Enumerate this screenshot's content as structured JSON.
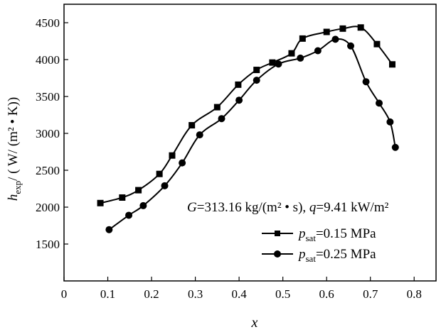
{
  "chart_data": {
    "type": "line",
    "title": "",
    "annotation": {
      "G_symbol": "G",
      "G_value": "=313.16 kg/(m² • s), ",
      "q_symbol": "q",
      "q_value": "=9.41 kW/m²"
    },
    "xlabel": "x",
    "ylabel": {
      "h": "h",
      "sub": "exp",
      "rest": "/ ( W/ (m² • K))"
    },
    "xlim": [
      0,
      0.85
    ],
    "ylim": [
      1000,
      4750
    ],
    "x_ticks": [
      0,
      0.1,
      0.2,
      0.3,
      0.4,
      0.5,
      0.6,
      0.7,
      0.8
    ],
    "x_tick_labels": [
      "0",
      "0.1",
      "0.2",
      "0.3",
      "0.4",
      "0.5",
      "0.6",
      "0.7",
      "0.8"
    ],
    "y_ticks": [
      1500,
      2000,
      2500,
      3000,
      3500,
      4000,
      4500
    ],
    "y_tick_labels": [
      "1500",
      "2000",
      "2500",
      "3000",
      "3500",
      "4000",
      "4500"
    ],
    "grid": false,
    "legend_position": "bottom-right",
    "series": [
      {
        "name": "p_sat=0.15 MPa",
        "legend_p": "p",
        "legend_sub": "sat",
        "legend_value": "=0.15 MPa",
        "marker": "square",
        "x": [
          0.083,
          0.133,
          0.17,
          0.218,
          0.247,
          0.292,
          0.35,
          0.398,
          0.44,
          0.476,
          0.52,
          0.545,
          0.6,
          0.637,
          0.678,
          0.715,
          0.75
        ],
        "y": [
          2055,
          2130,
          2230,
          2450,
          2700,
          3110,
          3355,
          3660,
          3860,
          3960,
          4085,
          4285,
          4375,
          4420,
          4435,
          4210,
          3935
        ]
      },
      {
        "name": "p_sat=0.25 MPa",
        "legend_p": "p",
        "legend_sub": "sat",
        "legend_value": "=0.25 MPa",
        "marker": "circle",
        "x": [
          0.103,
          0.148,
          0.181,
          0.23,
          0.27,
          0.31,
          0.36,
          0.4,
          0.44,
          0.49,
          0.54,
          0.58,
          0.62,
          0.655,
          0.69,
          0.72,
          0.745,
          0.757
        ],
        "y": [
          1695,
          1890,
          2020,
          2290,
          2600,
          2980,
          3200,
          3450,
          3720,
          3940,
          4020,
          4120,
          4275,
          4185,
          3700,
          3410,
          3155,
          2810
        ]
      }
    ]
  }
}
